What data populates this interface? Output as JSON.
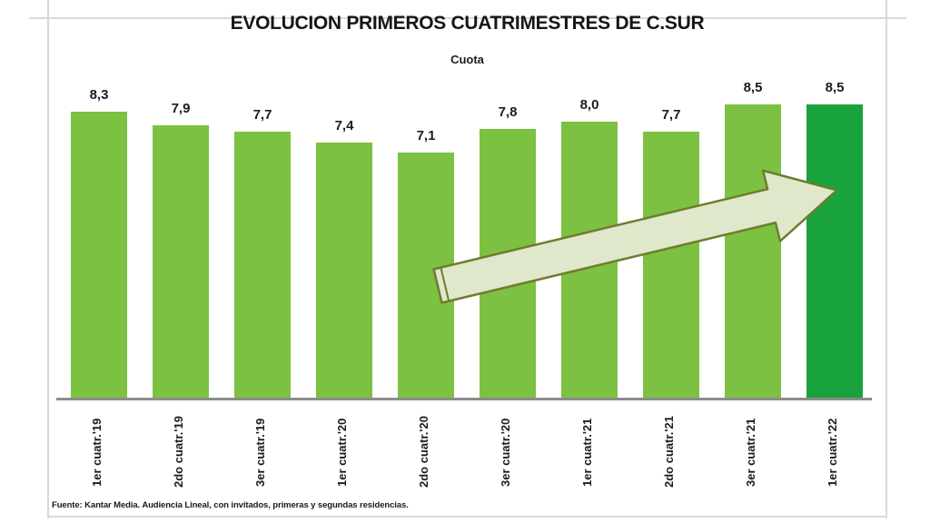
{
  "title": "EVOLUCION PRIMEROS CUATRIMESTRES DE C.SUR",
  "subtitle": "Cuota",
  "source_note": "Fuente: Kantar Media. Audiencia Lineal, con invitados, primeras y segundas residencias.",
  "colors": {
    "bar": "#7CC142",
    "bar_highlight": "#19A33C",
    "axis_line": "#8C8C8C",
    "frame_line": "#D9D9D9",
    "arrow_fill": "#DFE8CB",
    "arrow_stroke": "#6F7C2D",
    "text": "#1C1C1C"
  },
  "chart_data": {
    "type": "bar",
    "title": "EVOLUCION PRIMEROS CUATRIMESTRES DE C.SUR",
    "subtitle": "Cuota",
    "categories": [
      "1er cuatr.'19",
      "2do cuatr.'19",
      "3er cuatr.'19",
      "1er cuatr.'20",
      "2do cuatr.'20",
      "3er cuatr.'20",
      "1er cuatr.'21",
      "2do cuatr.'21",
      "3er cuatr.'21",
      "1er cuatr.'22"
    ],
    "values": [
      8.3,
      7.9,
      7.7,
      7.4,
      7.1,
      7.8,
      8.0,
      7.7,
      8.5,
      8.5
    ],
    "value_labels": [
      "8,3",
      "7,9",
      "7,7",
      "7,4",
      "7,1",
      "7,8",
      "8,0",
      "7,7",
      "8,5",
      "8,5"
    ],
    "highlight_index": 9,
    "xlabel": "",
    "ylabel": "",
    "ylim": [
      0,
      9
    ],
    "grid": false,
    "legend": false,
    "annotation": "upward-trend-arrow"
  }
}
